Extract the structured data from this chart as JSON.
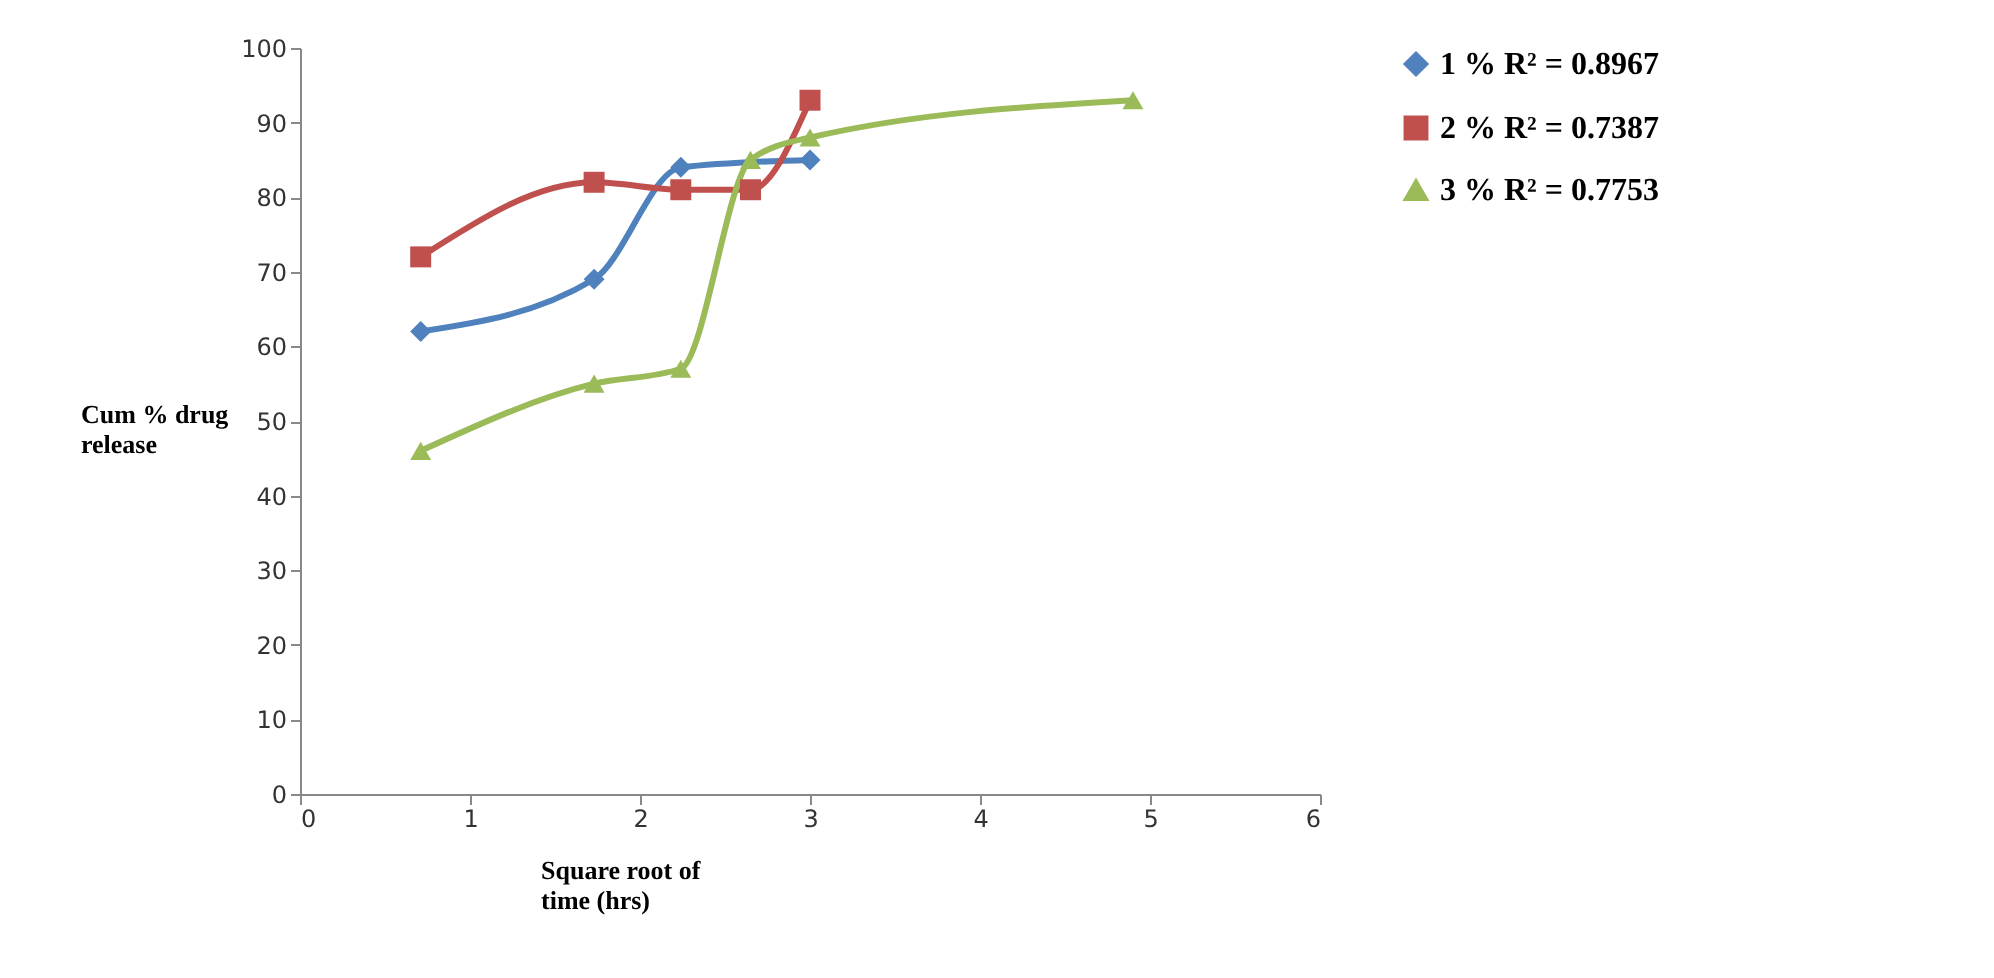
{
  "chart_data": {
    "type": "line",
    "xlabel": "Square root of time (hrs)",
    "ylabel": "Cum % drug release",
    "xlim": [
      0,
      6
    ],
    "xticks": [
      0,
      1,
      2,
      3,
      4,
      5,
      6
    ],
    "ylim": [
      0,
      100
    ],
    "yticks": [
      0,
      10,
      20,
      30,
      40,
      50,
      60,
      70,
      80,
      90,
      100
    ],
    "grid": false,
    "legend": "right",
    "series": [
      {
        "name": "1 % R² = 0.8967",
        "color": "#4f81bd",
        "marker": "diamond",
        "x": [
          0.71,
          1.73,
          2.24,
          3.0
        ],
        "values": [
          62,
          69,
          84,
          85
        ]
      },
      {
        "name": "2 % R² = 0.7387",
        "color": "#c0504d",
        "marker": "square",
        "x": [
          0.71,
          1.73,
          2.24,
          2.65,
          3.0
        ],
        "values": [
          72,
          82,
          81,
          81,
          93
        ]
      },
      {
        "name": "3 % R² = 0.7753",
        "color": "#9bbb59",
        "marker": "triangle",
        "x": [
          0.71,
          1.73,
          2.24,
          2.65,
          3.0,
          4.9
        ],
        "values": [
          46,
          55,
          57,
          85,
          88,
          93
        ]
      }
    ]
  }
}
